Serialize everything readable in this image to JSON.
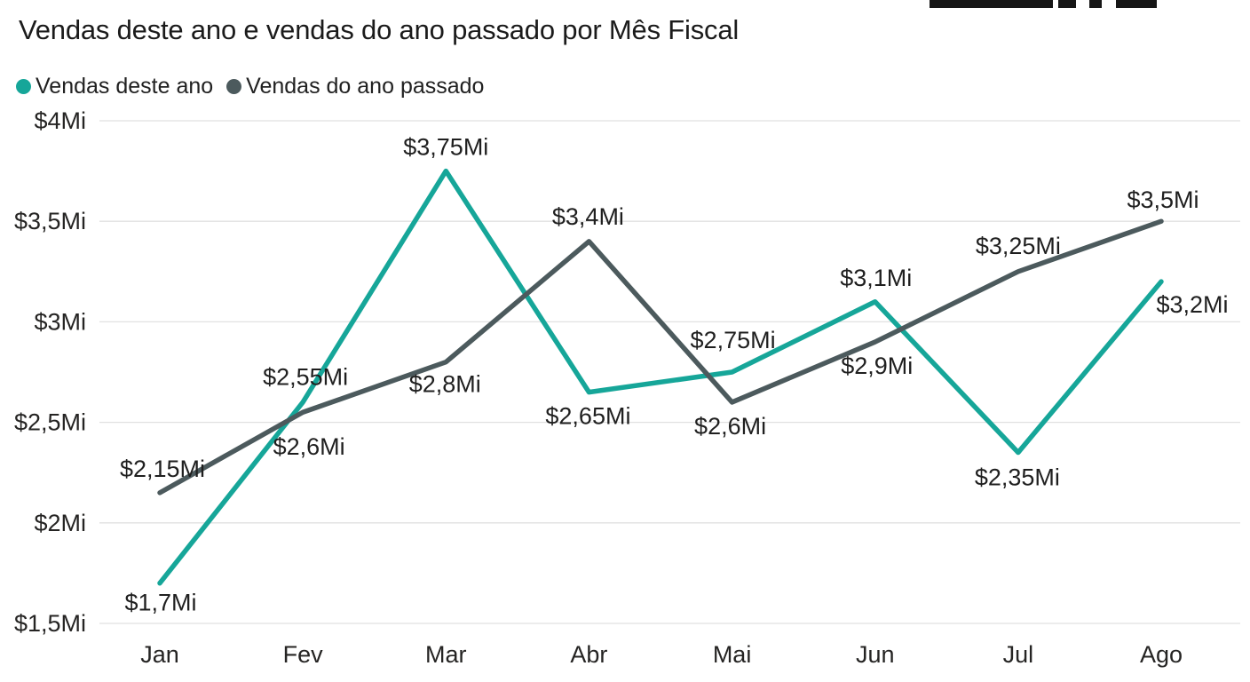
{
  "title": "Vendas deste ano e vendas do ano passado por Mês Fiscal",
  "legend": {
    "items": [
      {
        "label": "Vendas deste ano",
        "color": "#16A699"
      },
      {
        "label": "Vendas do ano passado",
        "color": "#4C5A5D"
      }
    ]
  },
  "artifact_bar_color": "#161616",
  "chart_data": {
    "type": "line",
    "title": "Vendas deste ano e vendas do ano passado por Mês Fiscal",
    "categories": [
      "Jan",
      "Fev",
      "Mar",
      "Abr",
      "Mai",
      "Jun",
      "Jul",
      "Ago"
    ],
    "series": [
      {
        "name": "Vendas deste ano",
        "color": "#16A699",
        "values": [
          1.7,
          2.6,
          3.75,
          2.65,
          2.75,
          3.1,
          2.35,
          3.2
        ],
        "point_labels": [
          "$1,7Mi",
          "$2,6Mi",
          "$3,75Mi",
          "$2,65Mi",
          "$2,75Mi",
          "$3,1Mi",
          "$2,35Mi",
          "$3,2Mi"
        ],
        "label_offsets": [
          [
            1,
            22
          ],
          [
            7,
            50
          ],
          [
            0,
            -27
          ],
          [
            -1,
            27
          ],
          [
            1,
            -36
          ],
          [
            1,
            -27
          ],
          [
            -1,
            28
          ],
          [
            35,
            26
          ]
        ]
      },
      {
        "name": "Vendas do ano passado",
        "color": "#4C5A5D",
        "values": [
          2.15,
          2.55,
          2.8,
          3.4,
          2.6,
          2.9,
          3.25,
          3.5
        ],
        "point_labels": [
          "$2,15Mi",
          "$2,55Mi",
          "$2,8Mi",
          "$3,4Mi",
          "$2,6Mi",
          "$2,9Mi",
          "$3,25Mi",
          "$3,5Mi"
        ],
        "label_offsets": [
          [
            3,
            -27
          ],
          [
            3,
            -40
          ],
          [
            -1,
            25
          ],
          [
            -1,
            -28
          ],
          [
            -2,
            27
          ],
          [
            2,
            27
          ],
          [
            0,
            -29
          ],
          [
            2,
            -24
          ]
        ]
      }
    ],
    "y_ticks": [
      {
        "label": "$4Mi",
        "value": 4.0
      },
      {
        "label": "$3,5Mi",
        "value": 3.5
      },
      {
        "label": "$3Mi",
        "value": 3.0
      },
      {
        "label": "$2,5Mi",
        "value": 2.5
      },
      {
        "label": "$2Mi",
        "value": 2.0
      },
      {
        "label": "$1,5Mi",
        "value": 1.5
      }
    ],
    "ylim": [
      1.5,
      4.0
    ],
    "xlabel": "",
    "ylabel": "",
    "grid": true,
    "legend_position": "top-left",
    "grid_color": "#E1E1E1",
    "axis_text_color": "#252423",
    "data_label_color": "#1F1F1F"
  }
}
